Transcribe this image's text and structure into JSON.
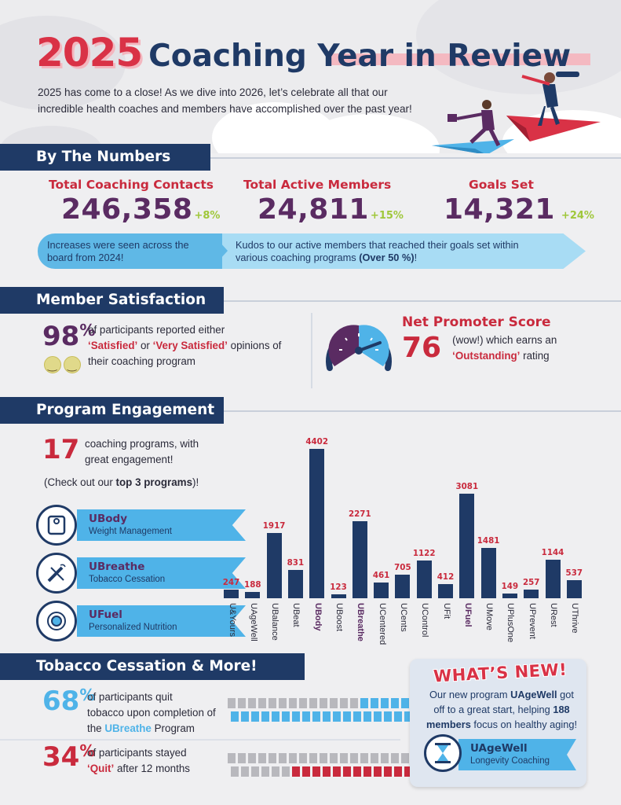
{
  "header": {
    "year": "2025",
    "title": "Coaching Year in Review",
    "intro_line1": "2025 has come to a close! As we dive into 2026, let’s celebrate all that our",
    "intro_line2": "incredible health coaches and members have accomplished over the past year!"
  },
  "sections": {
    "numbers": "By The Numbers",
    "satisfaction": "Member Satisfaction",
    "engagement": "Program Engagement",
    "tobacco": "Tobacco Cessation & More!"
  },
  "numbers": {
    "stats": [
      {
        "label": "Total Coaching Contacts",
        "value": "246,358",
        "change": "+8%"
      },
      {
        "label": "Total Active Members",
        "value": "24,811",
        "change": "+15%"
      },
      {
        "label": "Goals Set",
        "value": "14,321",
        "change": "+24%"
      }
    ],
    "banner_left_1": "Increases were seen across the",
    "banner_left_2": "board from 2024!",
    "banner_right_1": "Kudos to our active members that reached their goals set within",
    "banner_right_2a": "various coaching programs ",
    "banner_right_2b": "(Over 50 %)",
    "banner_right_2c": "!"
  },
  "satisfaction": {
    "pct": "98",
    "pct_sign": "%",
    "line1": "of participants reported either",
    "sat1": "‘Satisfied’",
    "or": " or ",
    "sat2": "‘Very Satisfied’",
    "opinions": " opinions of",
    "line3": "their coaching program",
    "nps_title": "Net Promoter Score",
    "nps_value": "76",
    "nps_text1": "(wow!) which earns an",
    "nps_text2": "‘Outstanding’",
    "nps_text3": " rating",
    "nps_score": 76
  },
  "engagement": {
    "count": "17",
    "count_text1": "coaching programs, with",
    "count_text2": "great engagement!",
    "check_a": "(Check out our ",
    "check_b": "top 3 programs",
    "check_c": ")!",
    "top_programs": [
      {
        "name": "UBody",
        "sub": "Weight Management",
        "icon": "scale-icon"
      },
      {
        "name": "UBreathe",
        "sub": "Tobacco Cessation",
        "icon": "no-smoking-icon"
      },
      {
        "name": "UFuel",
        "sub": "Personalized Nutrition",
        "icon": "plate-icon"
      }
    ]
  },
  "chart_data": {
    "type": "bar",
    "categories": [
      "U&Yours",
      "UAgeWell",
      "UBalance",
      "UBeat",
      "UBody",
      "UBoost",
      "UBreathe",
      "UCentered",
      "UCents",
      "UControl",
      "UFit",
      "UFuel",
      "UMove",
      "UPlusOne",
      "UPrevent",
      "URest",
      "UThrive"
    ],
    "values": [
      247,
      188,
      1917,
      831,
      4402,
      123,
      2271,
      461,
      705,
      1122,
      412,
      3081,
      1481,
      149,
      257,
      1144,
      537
    ],
    "highlighted": [
      "UBody",
      "UBreathe",
      "UFuel"
    ],
    "title": "",
    "xlabel": "",
    "ylabel": ""
  },
  "tobacco": {
    "stat1_pct": "68",
    "stat1_sign": "%",
    "stat1_l1": "of participants quit",
    "stat1_l2": "tobacco upon completion of",
    "stat1_l3a": "the ",
    "stat1_l3b": "UBreathe",
    "stat1_l3c": " Program",
    "stat2_pct": "34",
    "stat2_sign": "%",
    "stat2_l1": "of participants stayed",
    "stat2_l2a": "‘Quit’",
    "stat2_l2b": " after 12 months",
    "stat1_fraction": 0.68,
    "stat2_fraction": 0.34
  },
  "whats_new": {
    "title": "WHAT’S NEW!",
    "t1": "Our new program ",
    "t2": "UAgeWell",
    "t3": " got",
    "t4": "off to a great start, helping ",
    "t5": "188",
    "t6": "members",
    "t7": " focus on healthy aging!",
    "prog_name": "UAgeWell",
    "prog_sub": "Longevity Coaching",
    "icon": "hourglass-icon"
  },
  "colors": {
    "navy": "#1f3a66",
    "red": "#c92a3d",
    "purple": "#5a2b62",
    "blue": "#4fb3e8",
    "green": "#9fc73a"
  }
}
